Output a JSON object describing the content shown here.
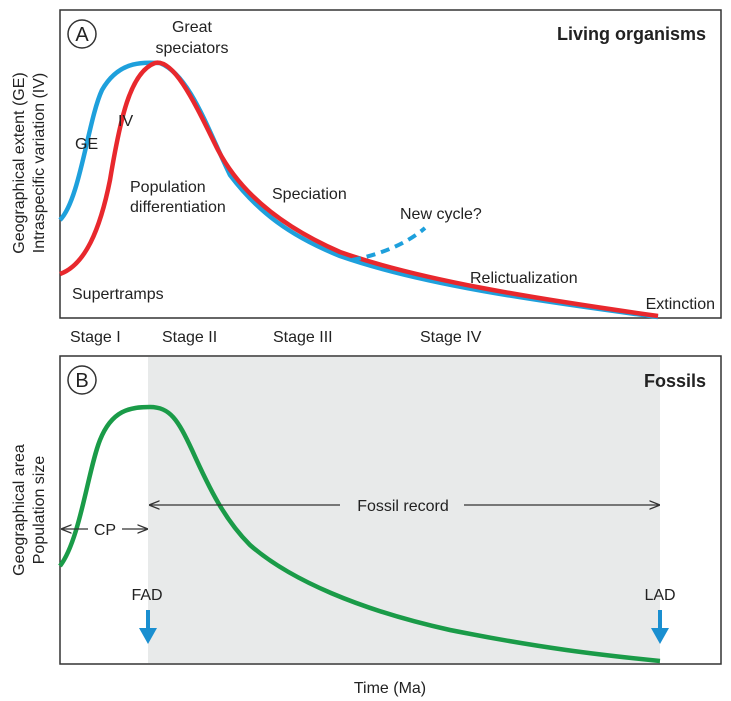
{
  "panel_a": {
    "letter": "A",
    "title": "Living organisms",
    "ylabel_line1": "Geographical extent (GE)",
    "ylabel_line2": "Intraspecific variation (IV)",
    "labels": {
      "great_line1": "Great",
      "great_line2": "speciators",
      "ge": "GE",
      "iv": "IV",
      "popdiff_line1": "Population",
      "popdiff_line2": "differentiation",
      "speciation": "Speciation",
      "new_cycle": "New cycle?",
      "supertramps": "Supertramps",
      "relictualization": "Relictualization",
      "extinction": "Extinction"
    },
    "stages": [
      "Stage I",
      "Stage II",
      "Stage III",
      "Stage IV"
    ],
    "colors": {
      "ge": "#1ea0dc",
      "iv": "#e8282d"
    }
  },
  "panel_b": {
    "letter": "B",
    "title": "Fossils",
    "ylabel_line1": "Geographical area",
    "ylabel_line2": "Population size",
    "cp": "CP",
    "fossil_record": "Fossil record",
    "fad": "FAD",
    "lad": "LAD",
    "colors": {
      "curve": "#1a9b48",
      "shade": "#e8eaea",
      "arrow": "#1a8fd0"
    }
  },
  "xlabel": "Time (Ma)"
}
